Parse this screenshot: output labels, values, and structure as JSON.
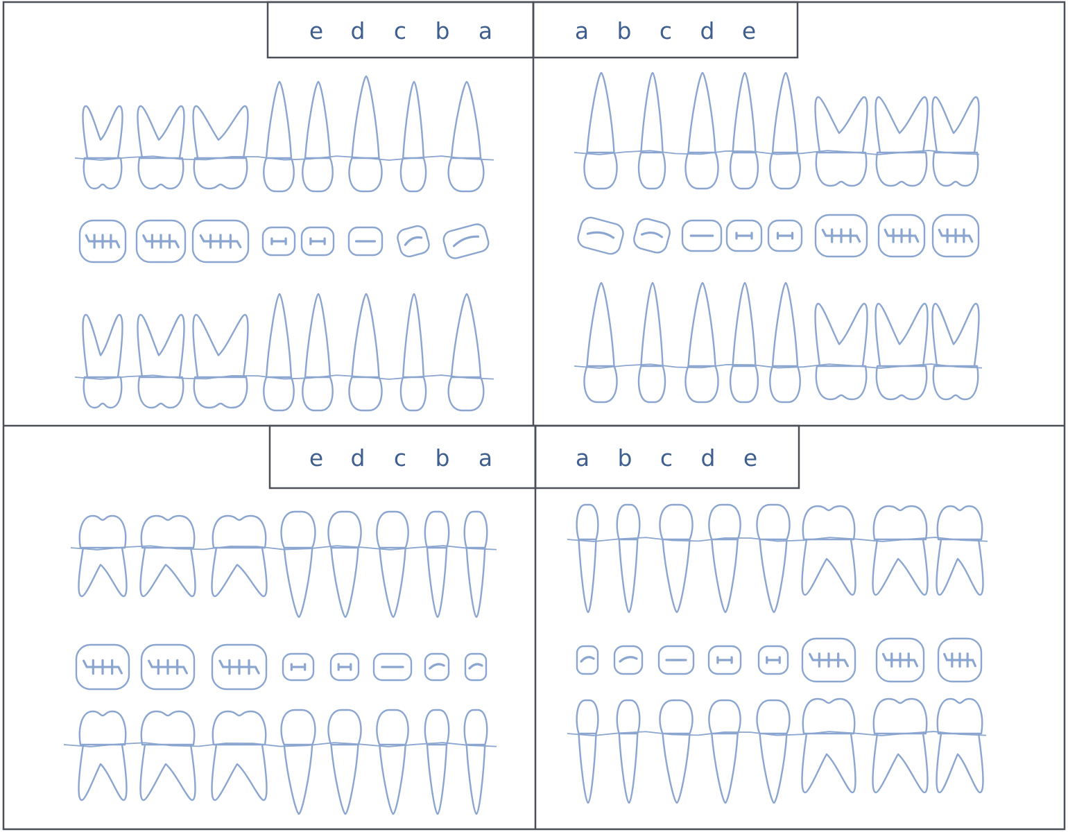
{
  "colors": {
    "line": "#8aa5cf",
    "text": "#3e5f8d",
    "frame": "#4b4f57",
    "background": "#ffffff"
  },
  "quadrants": [
    {
      "id": "upper-right",
      "labels": [
        "e",
        "d",
        "c",
        "b",
        "a"
      ]
    },
    {
      "id": "upper-left",
      "labels": [
        "a",
        "b",
        "c",
        "d",
        "e"
      ]
    },
    {
      "id": "lower-right",
      "labels": [
        "e",
        "d",
        "c",
        "b",
        "a"
      ]
    },
    {
      "id": "lower-left",
      "labels": [
        "a",
        "b",
        "c",
        "d",
        "e"
      ]
    }
  ]
}
